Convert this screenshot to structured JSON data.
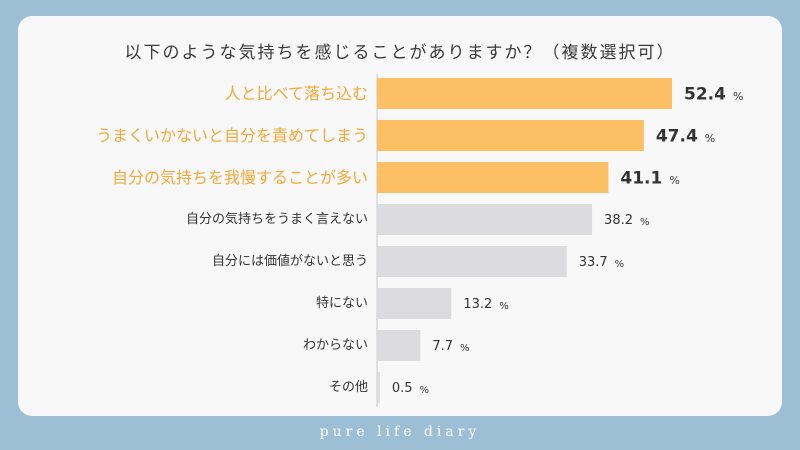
{
  "chart_data": {
    "type": "bar",
    "orientation": "horizontal",
    "title": "以下のような気持ちを感じることがありますか？（複数選択可）",
    "unit": "%",
    "categories": [
      "人と比べて落ち込む",
      "うまくいかないと自分を責めてしまう",
      "自分の気持ちを我慢することが多い",
      "自分の気持ちをうまく言えない",
      "自分には価値がないと思う",
      "特にない",
      "わからない",
      "その他"
    ],
    "values": [
      52.4,
      47.4,
      41.1,
      38.2,
      33.7,
      13.2,
      7.7,
      0.5
    ],
    "value_labels": [
      "52.4",
      "47.4",
      "41.1",
      "38.2",
      "33.7",
      "13.2",
      "7.7",
      "0.5"
    ],
    "highlight_count": 3,
    "xlim": [
      0,
      60
    ],
    "grid": false,
    "legend": "none"
  },
  "colors": {
    "background": "#9dbfd6",
    "card": "#f8f8f8",
    "highlight_bar": "#fdbf63",
    "highlight_text": "#f2a93a",
    "normal_bar": "#dcdcde",
    "normal_text": "#333333",
    "axis": "#c9c9c9"
  },
  "footer": {
    "brand": "pure life diary"
  }
}
